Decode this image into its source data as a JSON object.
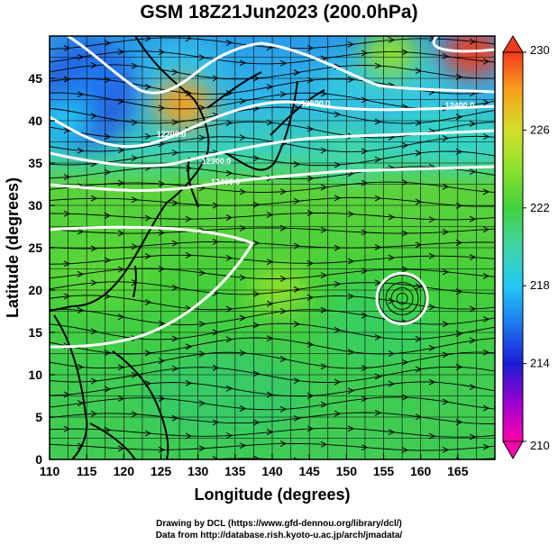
{
  "title": "GSM 18Z21Jun2023 (200.0hPa)",
  "credits": {
    "line1": "Drawing by DCL (https://www.gfd-dennou.org/library/dcl/)",
    "line2": "Data from http://database.rish.kyoto-u.ac.jp/arch/jmadata/"
  },
  "chart_data": {
    "type": "heatmap",
    "xlabel": "Longitude (degrees)",
    "ylabel": "Latitude  (degrees)",
    "xlim": [
      110,
      170
    ],
    "ylim": [
      0,
      50
    ],
    "x_ticks": [
      110,
      115,
      120,
      125,
      130,
      135,
      140,
      145,
      150,
      155,
      160,
      165
    ],
    "y_ticks": [
      0,
      5,
      10,
      15,
      20,
      25,
      30,
      35,
      40,
      45
    ],
    "grid": true,
    "colorbar": {
      "ticks": [
        210,
        214,
        218,
        222,
        226,
        230
      ],
      "range": [
        210,
        230
      ]
    },
    "temperature_features": [
      {
        "lon": 128,
        "lat": 42,
        "value": 228
      },
      {
        "lon": 167,
        "lat": 48,
        "value": 230
      },
      {
        "lon": 156,
        "lat": 48,
        "value": 224
      },
      {
        "lon": 116,
        "lat": 45,
        "value": 216
      },
      {
        "lon": 112,
        "lat": 40,
        "value": 217
      },
      {
        "lon": 141,
        "lat": 20,
        "value": 224
      },
      {
        "lon": 150,
        "lat": 36,
        "value": 219
      },
      {
        "lon": 158,
        "lat": 20,
        "value": 221
      }
    ],
    "contour_labels": [
      "12200.0",
      "12300.0",
      "12400.0",
      "12500.0",
      "12400.0"
    ],
    "anticyclone_center": {
      "lon": 157.5,
      "lat": 19
    }
  }
}
